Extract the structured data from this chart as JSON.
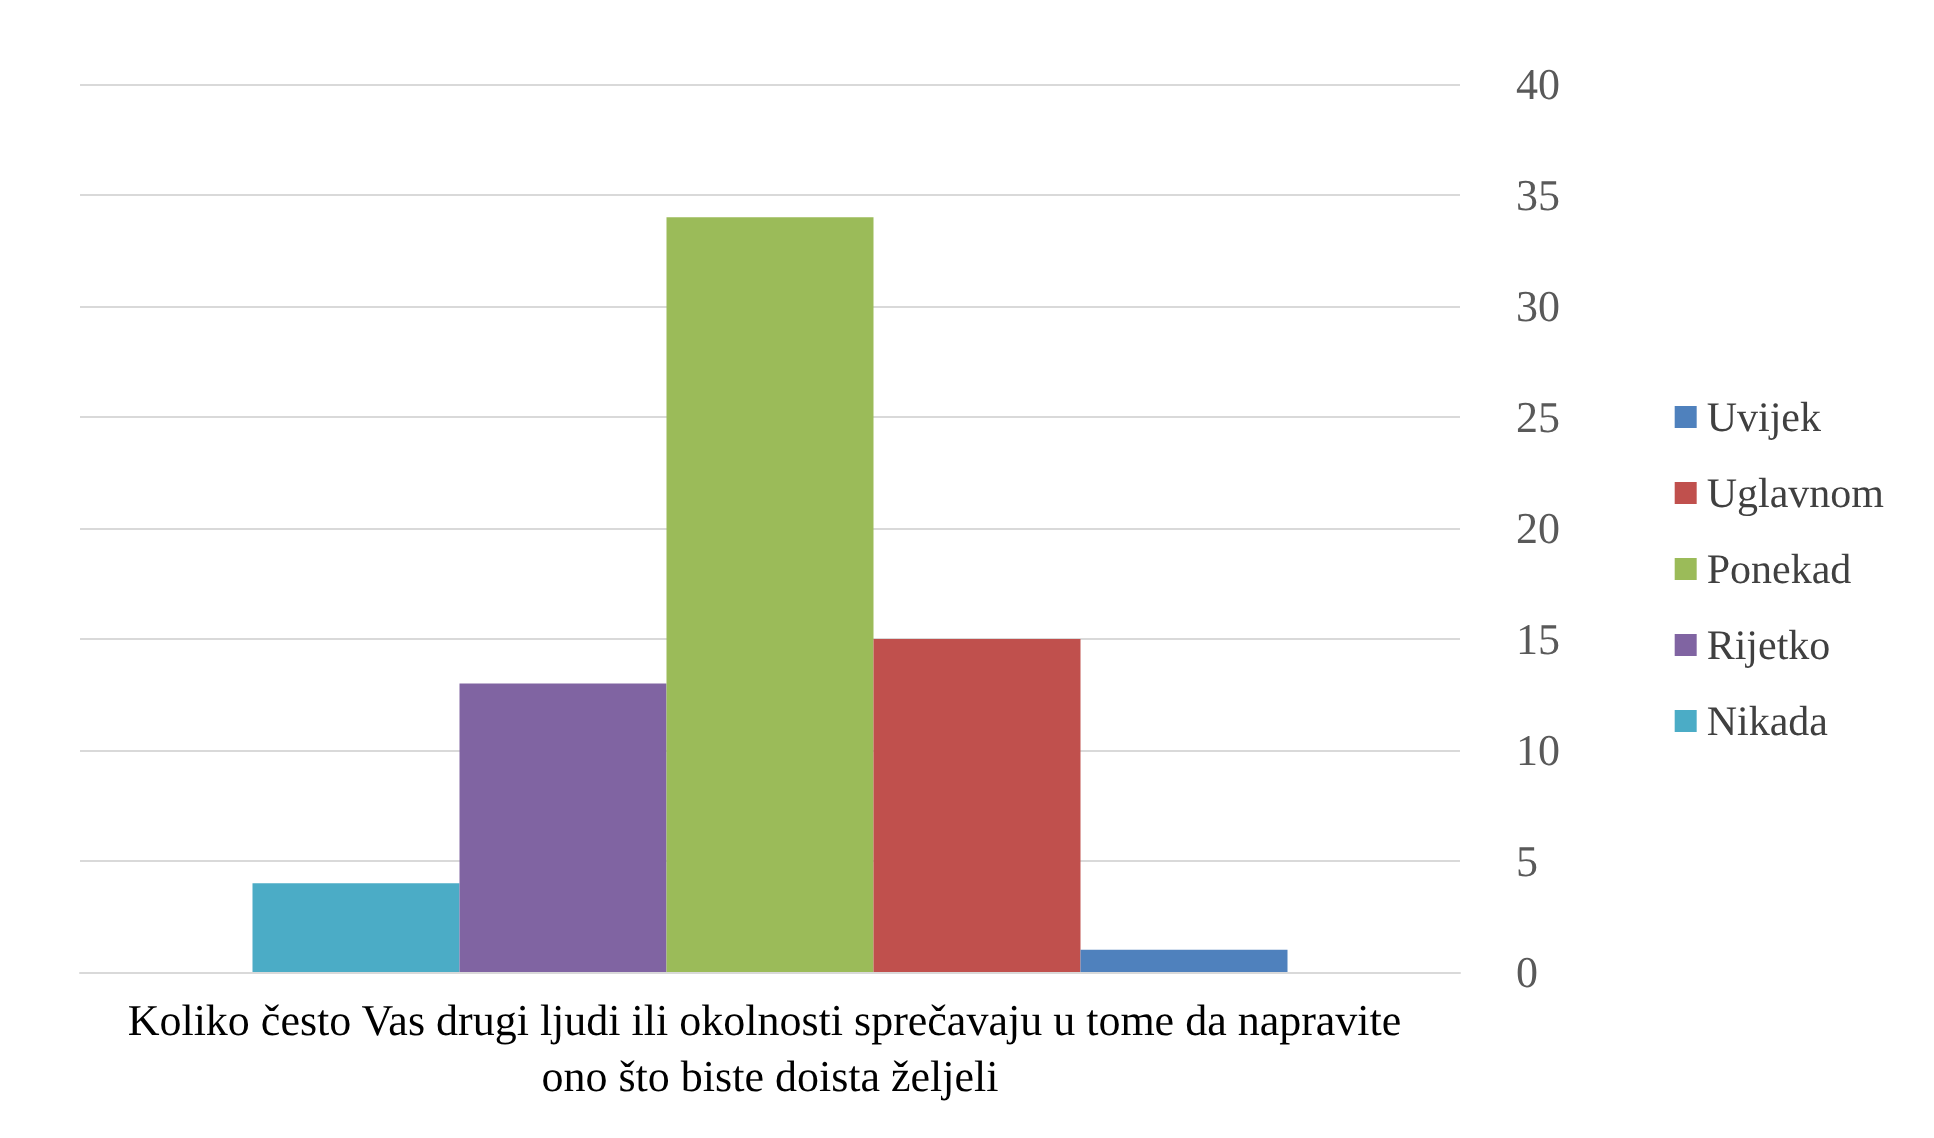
{
  "chart_data": {
    "type": "bar",
    "categories": [
      "Koliko često Vas drugi ljudi ili okolnosti sprečavaju u tome da napravite ono što biste doista željeli"
    ],
    "series": [
      {
        "name": "Nikada",
        "color": "#4bacc6",
        "values": [
          4
        ]
      },
      {
        "name": "Rijetko",
        "color": "#8064a2",
        "values": [
          13
        ]
      },
      {
        "name": "Ponekad",
        "color": "#9bbb59",
        "values": [
          34
        ]
      },
      {
        "name": "Uglavnom",
        "color": "#c0504d",
        "values": [
          15
        ]
      },
      {
        "name": "Uvijek",
        "color": "#4f81bd",
        "values": [
          1
        ]
      }
    ],
    "ylim": [
      0,
      40
    ],
    "yticks": [
      0,
      5,
      10,
      15,
      20,
      25,
      30,
      35,
      40
    ],
    "grid": "y",
    "legend": "right"
  }
}
